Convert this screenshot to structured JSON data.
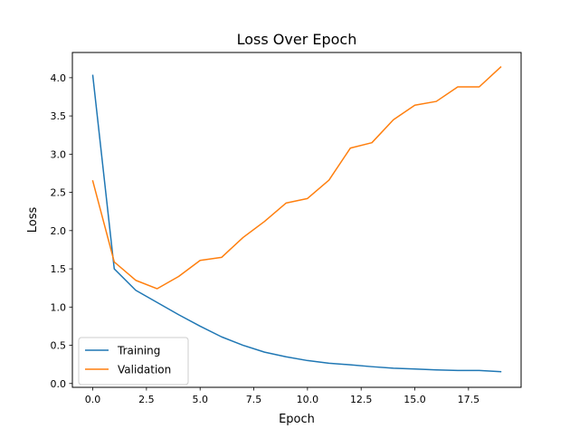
{
  "chart_data": {
    "type": "line",
    "title": "Loss Over Epoch",
    "xlabel": "Epoch",
    "ylabel": "Loss",
    "xlim": [
      -0.95,
      19.95
    ],
    "ylim": [
      -0.05,
      4.33
    ],
    "xticks": [
      0,
      2.5,
      5,
      7.5,
      10,
      12.5,
      15,
      17.5
    ],
    "xtick_labels": [
      "0.0",
      "2.5",
      "5.0",
      "7.5",
      "10.0",
      "12.5",
      "15.0",
      "17.5"
    ],
    "yticks": [
      0,
      0.5,
      1,
      1.5,
      2,
      2.5,
      3,
      3.5,
      4
    ],
    "ytick_labels": [
      "0.0",
      "0.5",
      "1.0",
      "1.5",
      "2.0",
      "2.5",
      "3.0",
      "3.5",
      "4.0"
    ],
    "grid": false,
    "legend_position": "lower-left",
    "x": [
      0,
      1,
      2,
      3,
      4,
      5,
      6,
      7,
      8,
      9,
      10,
      11,
      12,
      13,
      14,
      15,
      16,
      17,
      18,
      19
    ],
    "series": [
      {
        "name": "Training",
        "color": "#1f77b4",
        "values": [
          4.03,
          1.5,
          1.22,
          1.06,
          0.9,
          0.75,
          0.61,
          0.5,
          0.41,
          0.35,
          0.3,
          0.265,
          0.245,
          0.22,
          0.2,
          0.19,
          0.178,
          0.17,
          0.17,
          0.155
        ]
      },
      {
        "name": "Validation",
        "color": "#ff7f0e",
        "values": [
          2.65,
          1.59,
          1.35,
          1.24,
          1.4,
          1.61,
          1.65,
          1.91,
          2.12,
          2.36,
          2.42,
          2.66,
          3.08,
          3.15,
          3.45,
          3.64,
          3.69,
          3.88,
          3.88,
          4.14
        ]
      }
    ]
  }
}
